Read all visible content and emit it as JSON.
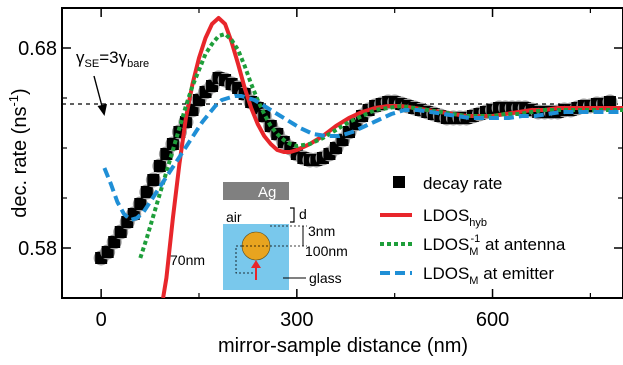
{
  "chart_data": {
    "type": "scatter",
    "title": "",
    "xlabel": "mirror-sample distance (nm)",
    "ylabel": "dec. rate (ns",
    "ylabel_sup": "-1",
    "ylabel_end": ")",
    "xlim": [
      -60,
      800
    ],
    "ylim": [
      0.555,
      0.7
    ],
    "xticks": [
      0,
      300,
      600
    ],
    "xtick_labels": [
      "0",
      "300",
      "600"
    ],
    "yticks": [
      0.58,
      0.68
    ],
    "ytick_labels": [
      "0.58",
      "0.68"
    ],
    "minor_xticks": [
      150,
      450,
      750
    ],
    "minor_yticks": [
      0.605,
      0.63,
      0.655
    ],
    "grid": false,
    "legend_position": "lower-right",
    "reference_line": {
      "y": 0.652,
      "style": "dashed",
      "label_parts": [
        "γ",
        "SE",
        "=3γ",
        "bare"
      ]
    },
    "series": [
      {
        "name": "decay rate",
        "kind": "scatter",
        "color": "#000000",
        "shadow_color": "#9a9a9a",
        "x": [
          0,
          10,
          20,
          30,
          40,
          50,
          60,
          70,
          80,
          90,
          100,
          110,
          120,
          130,
          140,
          150,
          160,
          170,
          180,
          190,
          200,
          210,
          220,
          230,
          240,
          250,
          260,
          270,
          280,
          290,
          300,
          310,
          320,
          330,
          340,
          350,
          360,
          370,
          380,
          390,
          400,
          410,
          420,
          430,
          440,
          450,
          460,
          470,
          480,
          490,
          500,
          510,
          520,
          530,
          540,
          550,
          560,
          570,
          580,
          590,
          600,
          610,
          620,
          630,
          640,
          650,
          660,
          670,
          680,
          690,
          700,
          710,
          720,
          730,
          740,
          750,
          760,
          770,
          780
        ],
        "y": [
          0.575,
          0.578,
          0.583,
          0.588,
          0.593,
          0.597,
          0.602,
          0.608,
          0.614,
          0.621,
          0.627,
          0.632,
          0.638,
          0.643,
          0.649,
          0.654,
          0.658,
          0.661,
          0.665,
          0.664,
          0.662,
          0.66,
          0.657,
          0.653,
          0.65,
          0.646,
          0.641,
          0.637,
          0.633,
          0.63,
          0.627,
          0.625,
          0.624,
          0.624,
          0.625,
          0.627,
          0.63,
          0.634,
          0.638,
          0.642,
          0.646,
          0.649,
          0.651,
          0.652,
          0.653,
          0.653,
          0.652,
          0.651,
          0.65,
          0.649,
          0.648,
          0.647,
          0.646,
          0.645,
          0.645,
          0.645,
          0.645,
          0.646,
          0.647,
          0.648,
          0.649,
          0.65,
          0.65,
          0.65,
          0.65,
          0.65,
          0.649,
          0.648,
          0.648,
          0.648,
          0.648,
          0.649,
          0.649,
          0.65,
          0.651,
          0.651,
          0.652,
          0.652,
          0.653
        ]
      },
      {
        "name": "LDOS",
        "name_sub": "hyb",
        "kind": "line",
        "color": "#e8262b",
        "dash": "solid",
        "x": [
          95,
          100,
          110,
          120,
          130,
          140,
          150,
          160,
          170,
          180,
          190,
          200,
          210,
          220,
          230,
          240,
          250,
          260,
          270,
          280,
          290,
          300,
          320,
          340,
          360,
          380,
          400,
          420,
          440,
          460,
          480,
          500,
          520,
          540,
          560,
          580,
          600,
          620,
          640,
          660,
          680,
          700,
          720,
          740,
          760,
          780,
          800
        ],
        "y": [
          0.555,
          0.565,
          0.595,
          0.622,
          0.645,
          0.662,
          0.675,
          0.685,
          0.692,
          0.695,
          0.692,
          0.683,
          0.672,
          0.66,
          0.65,
          0.642,
          0.636,
          0.632,
          0.629,
          0.628,
          0.628,
          0.629,
          0.632,
          0.636,
          0.641,
          0.645,
          0.648,
          0.65,
          0.651,
          0.651,
          0.65,
          0.649,
          0.648,
          0.647,
          0.646,
          0.646,
          0.646,
          0.647,
          0.648,
          0.649,
          0.649,
          0.65,
          0.65,
          0.65,
          0.65,
          0.65,
          0.65
        ]
      },
      {
        "name": "LDOS",
        "name_sub": "M",
        "name_sup": "-1",
        "name_tail": " at antenna",
        "kind": "line",
        "color": "#1e9e3a",
        "dash": "4,3",
        "x": [
          60,
          70,
          80,
          90,
          100,
          110,
          120,
          130,
          140,
          150,
          160,
          170,
          180,
          190,
          200,
          210,
          220,
          230,
          240,
          250,
          260,
          270,
          280,
          290,
          300,
          320,
          340,
          360,
          380,
          400,
          420,
          440,
          460,
          480,
          500,
          520,
          540,
          560,
          580,
          600,
          620,
          640,
          660,
          680,
          700,
          720,
          740,
          760,
          780,
          800
        ],
        "y": [
          0.575,
          0.585,
          0.596,
          0.607,
          0.618,
          0.629,
          0.64,
          0.651,
          0.661,
          0.669,
          0.677,
          0.682,
          0.686,
          0.687,
          0.684,
          0.679,
          0.671,
          0.662,
          0.654,
          0.647,
          0.641,
          0.637,
          0.634,
          0.632,
          0.631,
          0.632,
          0.635,
          0.639,
          0.643,
          0.646,
          0.649,
          0.65,
          0.651,
          0.65,
          0.649,
          0.648,
          0.647,
          0.646,
          0.646,
          0.646,
          0.647,
          0.647,
          0.648,
          0.649,
          0.649,
          0.649,
          0.649,
          0.649,
          0.649,
          0.649
        ]
      },
      {
        "name": "LDOS",
        "name_sub": "M",
        "name_tail": " at emitter",
        "kind": "line",
        "color": "#1f8fd6",
        "dash": "10,5",
        "x": [
          5,
          15,
          25,
          35,
          45,
          55,
          65,
          75,
          85,
          95,
          105,
          115,
          125,
          135,
          145,
          155,
          165,
          175,
          185,
          195,
          205,
          215,
          225,
          235,
          245,
          255,
          265,
          275,
          285,
          295,
          305,
          325,
          345,
          365,
          385,
          405,
          425,
          445,
          465,
          485,
          505,
          525,
          545,
          565,
          585,
          605,
          625,
          645,
          665,
          685,
          705,
          725,
          745,
          765,
          785,
          800
        ],
        "y": [
          0.62,
          0.612,
          0.603,
          0.597,
          0.594,
          0.595,
          0.598,
          0.603,
          0.608,
          0.613,
          0.618,
          0.623,
          0.628,
          0.633,
          0.638,
          0.643,
          0.647,
          0.651,
          0.654,
          0.655,
          0.656,
          0.656,
          0.655,
          0.654,
          0.652,
          0.65,
          0.648,
          0.646,
          0.644,
          0.642,
          0.64,
          0.637,
          0.636,
          0.636,
          0.638,
          0.641,
          0.644,
          0.647,
          0.649,
          0.649,
          0.648,
          0.647,
          0.646,
          0.645,
          0.645,
          0.645,
          0.645,
          0.646,
          0.646,
          0.647,
          0.648,
          0.648,
          0.648,
          0.648,
          0.648,
          0.648
        ]
      }
    ],
    "inset": {
      "mirror_label": "Ag",
      "layer_label": "air",
      "d_label": "d",
      "gap_label": "3nm",
      "radius_label": "100nm",
      "diameter_label": "70nm",
      "substrate_label": "glass",
      "mirror_color": "#808080",
      "substrate_color": "#79c8ec",
      "particle_color": "#e8a41f",
      "emitter_color": "#e8262b"
    }
  }
}
